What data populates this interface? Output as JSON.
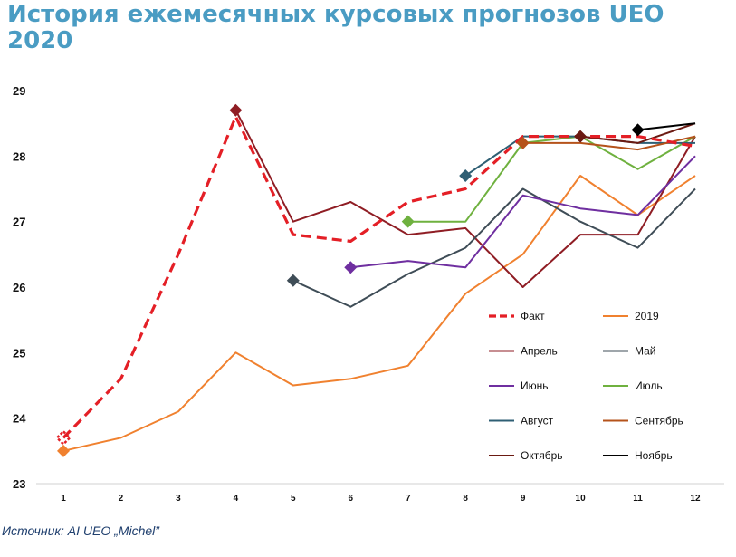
{
  "chart_data": {
    "type": "line",
    "title": "История ежемесячных курсовых прогнозов UEO 2020",
    "source": "Источник: AI UEO „Michel”",
    "x": [
      1,
      2,
      3,
      4,
      5,
      6,
      7,
      8,
      9,
      10,
      11,
      12
    ],
    "xlim": [
      1,
      12
    ],
    "ylim": [
      23,
      29
    ],
    "yticks": [
      23,
      24,
      25,
      26,
      27,
      28,
      29
    ],
    "grid": false,
    "legend_position": "right-bottom",
    "series": [
      {
        "name": "Факт",
        "color": "#e41f26",
        "dashed": true,
        "marker_x": 1,
        "values": [
          23.7,
          24.6,
          26.5,
          28.6,
          26.8,
          26.7,
          27.3,
          27.5,
          28.3,
          28.3,
          28.3,
          28.15
        ]
      },
      {
        "name": "2019",
        "color": "#f0812f",
        "dashed": false,
        "marker_x": 1,
        "values": [
          23.5,
          23.7,
          24.1,
          25.0,
          24.5,
          24.6,
          24.8,
          25.9,
          26.5,
          27.7,
          27.1,
          27.7
        ]
      },
      {
        "name": "Апрель",
        "color": "#8f1d24",
        "dashed": false,
        "marker_x": 4,
        "values": [
          null,
          null,
          null,
          28.7,
          27.0,
          27.3,
          26.8,
          26.9,
          26.0,
          26.8,
          26.8,
          28.3
        ]
      },
      {
        "name": "Май",
        "color": "#3f4d57",
        "dashed": false,
        "marker_x": 5,
        "values": [
          null,
          null,
          null,
          null,
          26.1,
          25.7,
          26.2,
          26.6,
          27.5,
          27.0,
          26.6,
          27.5
        ]
      },
      {
        "name": "Июнь",
        "color": "#6f2fa0",
        "dashed": false,
        "marker_x": 6,
        "values": [
          null,
          null,
          null,
          null,
          null,
          26.3,
          26.4,
          26.3,
          27.4,
          27.2,
          27.1,
          28.0
        ]
      },
      {
        "name": "Июль",
        "color": "#6fb13f",
        "dashed": false,
        "marker_x": 7,
        "values": [
          null,
          null,
          null,
          null,
          null,
          null,
          27.0,
          27.0,
          28.2,
          28.3,
          27.8,
          28.3
        ]
      },
      {
        "name": "Август",
        "color": "#2f5f74",
        "dashed": false,
        "marker_x": 8,
        "values": [
          null,
          null,
          null,
          null,
          null,
          null,
          null,
          27.7,
          28.3,
          28.3,
          28.2,
          28.2
        ]
      },
      {
        "name": "Сентябрь",
        "color": "#b5531b",
        "dashed": false,
        "marker_x": 9,
        "values": [
          null,
          null,
          null,
          null,
          null,
          null,
          null,
          null,
          28.2,
          28.2,
          28.1,
          28.3
        ]
      },
      {
        "name": "Октябрь",
        "color": "#6b1a12",
        "dashed": false,
        "marker_x": 10,
        "values": [
          null,
          null,
          null,
          null,
          null,
          null,
          null,
          null,
          null,
          28.3,
          28.2,
          28.5
        ]
      },
      {
        "name": "Ноябрь",
        "color": "#000000",
        "dashed": false,
        "marker_x": 11,
        "values": [
          null,
          null,
          null,
          null,
          null,
          null,
          null,
          null,
          null,
          null,
          28.4,
          28.5
        ]
      }
    ]
  }
}
